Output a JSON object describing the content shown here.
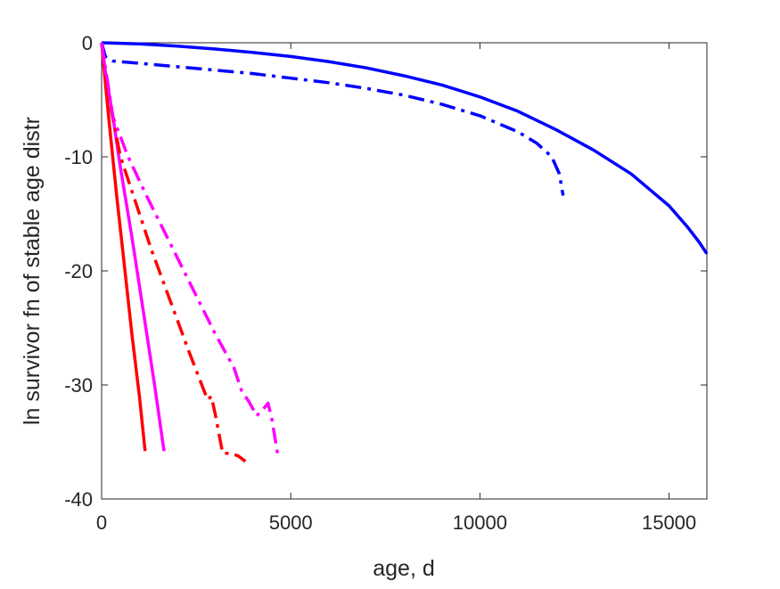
{
  "chart_data": {
    "type": "line",
    "title": "",
    "xlabel": "age, d",
    "ylabel": "ln survivor fn of stable age distr",
    "xlim": [
      0,
      16000
    ],
    "ylim": [
      -40,
      0
    ],
    "xticks": [
      0,
      5000,
      10000,
      15000
    ],
    "yticks": [
      0,
      -10,
      -20,
      -30,
      -40
    ],
    "xtick_labels": [
      "0",
      "5000",
      "10000",
      "15000"
    ],
    "ytick_labels": [
      "0",
      "-10",
      "-20",
      "-30",
      "-40"
    ],
    "grid": false,
    "legend": "none",
    "series": [
      {
        "color": "#0000ff",
        "style": "solid",
        "x": [
          0,
          1000,
          2000,
          3000,
          4000,
          5000,
          6000,
          7000,
          8000,
          9000,
          10000,
          11000,
          12000,
          13000,
          14000,
          15000,
          15500,
          15800,
          16000
        ],
        "y": [
          0,
          -0.1,
          -0.3,
          -0.55,
          -0.85,
          -1.2,
          -1.65,
          -2.2,
          -2.9,
          -3.7,
          -4.75,
          -6.0,
          -7.6,
          -9.4,
          -11.5,
          -14.3,
          -16.2,
          -17.5,
          -18.5
        ]
      },
      {
        "color": "#0000ff",
        "style": "dashdot",
        "x": [
          0,
          100,
          300,
          1000,
          2000,
          3000,
          4000,
          5000,
          6000,
          7000,
          8000,
          9000,
          10000,
          11000,
          11500,
          11900,
          12100,
          12200
        ],
        "y": [
          0,
          -1.2,
          -1.6,
          -1.8,
          -2.1,
          -2.4,
          -2.7,
          -3.1,
          -3.5,
          -4.0,
          -4.6,
          -5.4,
          -6.4,
          -7.8,
          -8.8,
          -10.0,
          -11.5,
          -13.4
        ]
      },
      {
        "color": "#ff0000",
        "style": "solid",
        "x": [
          0,
          100,
          200,
          400,
          600,
          800,
          1000,
          1150
        ],
        "y": [
          0,
          -3.5,
          -7,
          -13.5,
          -19.5,
          -25.5,
          -31,
          -35.8
        ]
      },
      {
        "color": "#ff00ff",
        "style": "solid",
        "x": [
          0,
          100,
          300,
          500,
          800,
          1100,
          1400,
          1650
        ],
        "y": [
          0,
          -2.5,
          -6.5,
          -11,
          -17,
          -23.5,
          -30,
          -35.8
        ]
      },
      {
        "color": "#ff0000",
        "style": "dashdot",
        "x": [
          0,
          200,
          500,
          900,
          1300,
          1800,
          2300,
          2800,
          2900,
          3000,
          3200,
          3400,
          3600,
          3800
        ],
        "y": [
          0,
          -5,
          -10,
          -14,
          -18,
          -22.5,
          -27,
          -31.3,
          -31,
          -32.5,
          -36,
          -36,
          -36.2,
          -36.7
        ]
      },
      {
        "color": "#ff00ff",
        "style": "dashdot",
        "x": [
          0,
          300,
          700,
          1200,
          1800,
          2400,
          3000,
          3500,
          3700,
          3900,
          4100,
          4300,
          4400,
          4500,
          4600,
          4650
        ],
        "y": [
          0,
          -6.5,
          -10,
          -13.5,
          -17.5,
          -21.5,
          -25.5,
          -28.5,
          -30.5,
          -31.5,
          -32.7,
          -32,
          -31.6,
          -33,
          -35,
          -36
        ]
      }
    ]
  }
}
